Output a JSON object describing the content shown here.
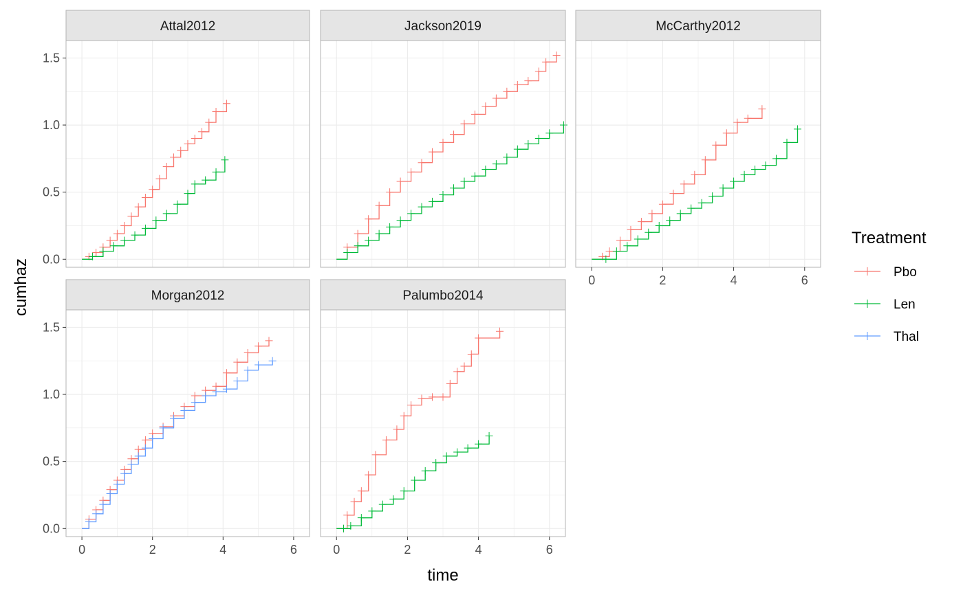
{
  "chart_data": {
    "type": "line",
    "subtype": "step-with-censor-marks",
    "xlabel": "time",
    "ylabel": "cumhaz",
    "xlim": [
      -0.45,
      6.45
    ],
    "ylim": [
      -0.06,
      1.63
    ],
    "xticks": [
      0,
      2,
      4,
      6
    ],
    "yticks": [
      0.0,
      0.5,
      1.0,
      1.5
    ],
    "xtick_labels": [
      "0",
      "2",
      "4",
      "6"
    ],
    "ytick_labels": [
      "0.0",
      "0.5",
      "1.0",
      "1.5"
    ],
    "grid": true,
    "legend": {
      "title": "Treatment",
      "position": "right",
      "entries": [
        {
          "label": "Pbo",
          "color": "#F8766D"
        },
        {
          "label": "Len",
          "color": "#00BA38"
        },
        {
          "label": "Thal",
          "color": "#619CFF"
        }
      ]
    },
    "colors": {
      "Pbo": "#F8766D",
      "Len": "#00BA38",
      "Thal": "#619CFF"
    },
    "panels": [
      {
        "name": "Attal2012",
        "series": [
          {
            "name": "Pbo",
            "points": [
              [
                0.0,
                0.0
              ],
              [
                0.2,
                0.02
              ],
              [
                0.4,
                0.05
              ],
              [
                0.6,
                0.09
              ],
              [
                0.8,
                0.14
              ],
              [
                1.0,
                0.19
              ],
              [
                1.2,
                0.25
              ],
              [
                1.4,
                0.32
              ],
              [
                1.6,
                0.39
              ],
              [
                1.8,
                0.46
              ],
              [
                2.0,
                0.52
              ],
              [
                2.2,
                0.6
              ],
              [
                2.4,
                0.69
              ],
              [
                2.6,
                0.76
              ],
              [
                2.8,
                0.81
              ],
              [
                3.0,
                0.86
              ],
              [
                3.2,
                0.9
              ],
              [
                3.4,
                0.95
              ],
              [
                3.6,
                1.02
              ],
              [
                3.8,
                1.1
              ],
              [
                4.1,
                1.16
              ]
            ]
          },
          {
            "name": "Len",
            "points": [
              [
                0.0,
                0.0
              ],
              [
                0.3,
                0.02
              ],
              [
                0.6,
                0.06
              ],
              [
                0.9,
                0.1
              ],
              [
                1.2,
                0.14
              ],
              [
                1.5,
                0.18
              ],
              [
                1.8,
                0.23
              ],
              [
                2.1,
                0.29
              ],
              [
                2.4,
                0.34
              ],
              [
                2.7,
                0.41
              ],
              [
                3.0,
                0.49
              ],
              [
                3.2,
                0.56
              ],
              [
                3.5,
                0.59
              ],
              [
                3.8,
                0.65
              ],
              [
                4.05,
                0.74
              ]
            ]
          }
        ]
      },
      {
        "name": "Jackson2019",
        "series": [
          {
            "name": "Pbo",
            "points": [
              [
                0.0,
                0.0
              ],
              [
                0.3,
                0.09
              ],
              [
                0.6,
                0.19
              ],
              [
                0.9,
                0.3
              ],
              [
                1.2,
                0.4
              ],
              [
                1.5,
                0.5
              ],
              [
                1.8,
                0.58
              ],
              [
                2.1,
                0.65
              ],
              [
                2.4,
                0.72
              ],
              [
                2.7,
                0.8
              ],
              [
                3.0,
                0.87
              ],
              [
                3.3,
                0.93
              ],
              [
                3.6,
                1.01
              ],
              [
                3.9,
                1.08
              ],
              [
                4.2,
                1.14
              ],
              [
                4.5,
                1.2
              ],
              [
                4.8,
                1.25
              ],
              [
                5.1,
                1.3
              ],
              [
                5.4,
                1.33
              ],
              [
                5.7,
                1.4
              ],
              [
                5.9,
                1.47
              ],
              [
                6.2,
                1.52
              ]
            ]
          },
          {
            "name": "Len",
            "points": [
              [
                0.0,
                0.0
              ],
              [
                0.3,
                0.05
              ],
              [
                0.6,
                0.1
              ],
              [
                0.9,
                0.14
              ],
              [
                1.2,
                0.19
              ],
              [
                1.5,
                0.24
              ],
              [
                1.8,
                0.29
              ],
              [
                2.1,
                0.34
              ],
              [
                2.4,
                0.39
              ],
              [
                2.7,
                0.43
              ],
              [
                3.0,
                0.48
              ],
              [
                3.3,
                0.53
              ],
              [
                3.6,
                0.58
              ],
              [
                3.9,
                0.62
              ],
              [
                4.2,
                0.67
              ],
              [
                4.5,
                0.71
              ],
              [
                4.8,
                0.76
              ],
              [
                5.1,
                0.82
              ],
              [
                5.4,
                0.86
              ],
              [
                5.7,
                0.9
              ],
              [
                6.0,
                0.94
              ],
              [
                6.4,
                1.0
              ]
            ]
          }
        ]
      },
      {
        "name": "McCarthy2012",
        "series": [
          {
            "name": "Pbo",
            "points": [
              [
                0.0,
                0.0
              ],
              [
                0.3,
                0.02
              ],
              [
                0.5,
                0.06
              ],
              [
                0.8,
                0.14
              ],
              [
                1.1,
                0.22
              ],
              [
                1.4,
                0.28
              ],
              [
                1.7,
                0.34
              ],
              [
                2.0,
                0.41
              ],
              [
                2.3,
                0.49
              ],
              [
                2.6,
                0.56
              ],
              [
                2.9,
                0.63
              ],
              [
                3.2,
                0.74
              ],
              [
                3.5,
                0.85
              ],
              [
                3.8,
                0.94
              ],
              [
                4.1,
                1.02
              ],
              [
                4.4,
                1.05
              ],
              [
                4.8,
                1.12
              ]
            ]
          },
          {
            "name": "Len",
            "points": [
              [
                0.0,
                0.0
              ],
              [
                0.4,
                0.0
              ],
              [
                0.7,
                0.06
              ],
              [
                1.0,
                0.1
              ],
              [
                1.3,
                0.15
              ],
              [
                1.6,
                0.2
              ],
              [
                1.9,
                0.25
              ],
              [
                2.2,
                0.29
              ],
              [
                2.5,
                0.34
              ],
              [
                2.8,
                0.38
              ],
              [
                3.1,
                0.42
              ],
              [
                3.4,
                0.47
              ],
              [
                3.7,
                0.53
              ],
              [
                4.0,
                0.58
              ],
              [
                4.3,
                0.63
              ],
              [
                4.6,
                0.67
              ],
              [
                4.9,
                0.7
              ],
              [
                5.2,
                0.75
              ],
              [
                5.5,
                0.87
              ],
              [
                5.8,
                0.97
              ]
            ]
          }
        ]
      },
      {
        "name": "Morgan2012",
        "series": [
          {
            "name": "Pbo",
            "points": [
              [
                0.0,
                0.0
              ],
              [
                0.2,
                0.07
              ],
              [
                0.4,
                0.14
              ],
              [
                0.6,
                0.21
              ],
              [
                0.8,
                0.29
              ],
              [
                1.0,
                0.36
              ],
              [
                1.2,
                0.44
              ],
              [
                1.4,
                0.52
              ],
              [
                1.6,
                0.59
              ],
              [
                1.8,
                0.66
              ],
              [
                2.0,
                0.71
              ],
              [
                2.3,
                0.76
              ],
              [
                2.6,
                0.84
              ],
              [
                2.9,
                0.91
              ],
              [
                3.2,
                0.99
              ],
              [
                3.5,
                1.03
              ],
              [
                3.8,
                1.06
              ],
              [
                4.1,
                1.16
              ],
              [
                4.4,
                1.24
              ],
              [
                4.7,
                1.31
              ],
              [
                5.0,
                1.36
              ],
              [
                5.3,
                1.4
              ]
            ]
          },
          {
            "name": "Thal",
            "points": [
              [
                0.0,
                0.0
              ],
              [
                0.2,
                0.05
              ],
              [
                0.4,
                0.11
              ],
              [
                0.6,
                0.18
              ],
              [
                0.8,
                0.26
              ],
              [
                1.0,
                0.33
              ],
              [
                1.2,
                0.41
              ],
              [
                1.4,
                0.48
              ],
              [
                1.6,
                0.54
              ],
              [
                1.8,
                0.6
              ],
              [
                2.0,
                0.67
              ],
              [
                2.3,
                0.75
              ],
              [
                2.6,
                0.82
              ],
              [
                2.9,
                0.88
              ],
              [
                3.2,
                0.94
              ],
              [
                3.5,
                0.99
              ],
              [
                3.8,
                1.02
              ],
              [
                4.1,
                1.04
              ],
              [
                4.4,
                1.1
              ],
              [
                4.7,
                1.18
              ],
              [
                5.0,
                1.22
              ],
              [
                5.4,
                1.25
              ]
            ]
          }
        ]
      },
      {
        "name": "Palumbo2014",
        "series": [
          {
            "name": "Pbo",
            "points": [
              [
                0.0,
                0.0
              ],
              [
                0.2,
                0.0
              ],
              [
                0.3,
                0.1
              ],
              [
                0.5,
                0.2
              ],
              [
                0.7,
                0.28
              ],
              [
                0.9,
                0.4
              ],
              [
                1.1,
                0.55
              ],
              [
                1.4,
                0.66
              ],
              [
                1.7,
                0.74
              ],
              [
                1.9,
                0.84
              ],
              [
                2.1,
                0.92
              ],
              [
                2.4,
                0.97
              ],
              [
                2.7,
                0.98
              ],
              [
                3.0,
                0.98
              ],
              [
                3.2,
                1.08
              ],
              [
                3.4,
                1.17
              ],
              [
                3.6,
                1.21
              ],
              [
                3.8,
                1.3
              ],
              [
                4.0,
                1.42
              ],
              [
                4.6,
                1.47
              ]
            ]
          },
          {
            "name": "Len",
            "points": [
              [
                0.0,
                0.0
              ],
              [
                0.2,
                0.0
              ],
              [
                0.4,
                0.02
              ],
              [
                0.7,
                0.08
              ],
              [
                1.0,
                0.13
              ],
              [
                1.3,
                0.18
              ],
              [
                1.6,
                0.22
              ],
              [
                1.9,
                0.28
              ],
              [
                2.2,
                0.36
              ],
              [
                2.5,
                0.43
              ],
              [
                2.8,
                0.49
              ],
              [
                3.1,
                0.54
              ],
              [
                3.4,
                0.57
              ],
              [
                3.7,
                0.6
              ],
              [
                4.0,
                0.63
              ],
              [
                4.3,
                0.69
              ]
            ]
          }
        ]
      }
    ]
  }
}
